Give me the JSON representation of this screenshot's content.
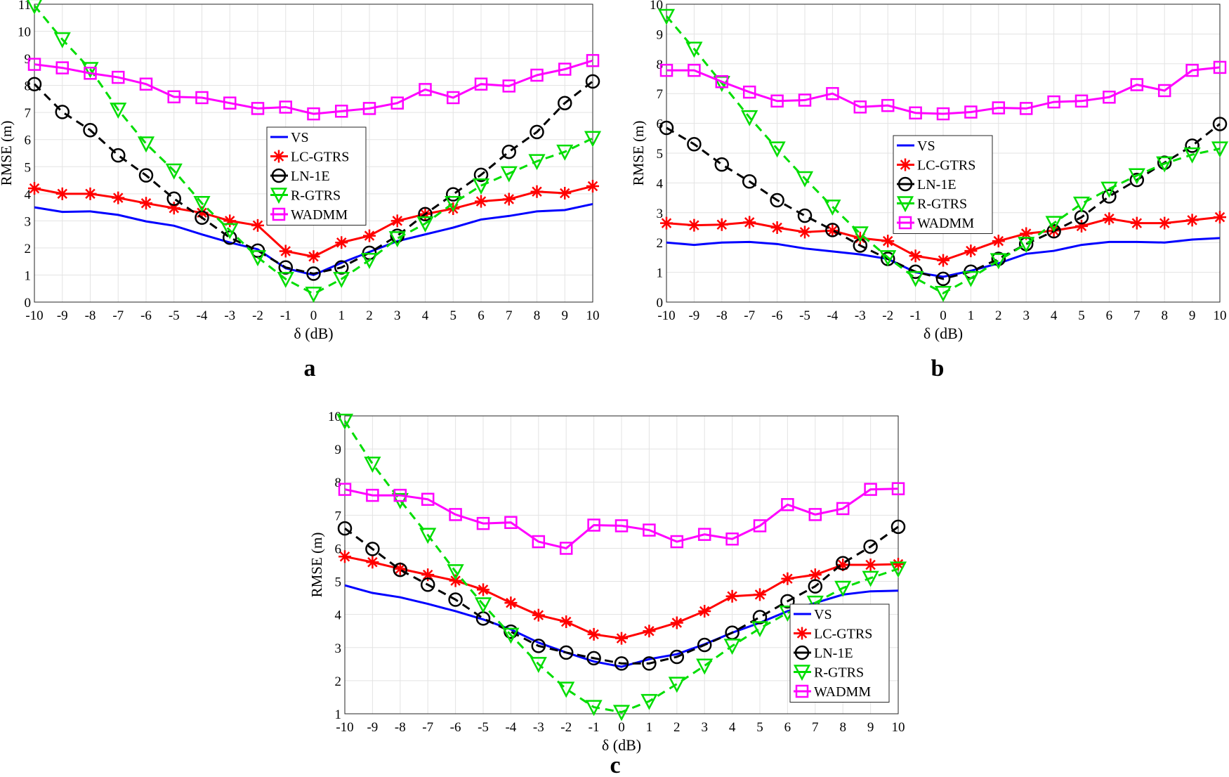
{
  "colors": {
    "VS": "#0000ff",
    "LC-GTRS": "#ff0000",
    "LN-1E": "#000000",
    "R-GTRS": "#00dd00",
    "WADMM": "#ff00ff"
  },
  "chart_data": [
    {
      "type": "line",
      "panel_label": "a",
      "xlabel": "δ (dB)",
      "ylabel": "RMSE (m)",
      "xlim": [
        -10,
        10
      ],
      "ylim": [
        0,
        11
      ],
      "grid": true,
      "legend": "center",
      "x": [
        -10,
        -9,
        -8,
        -7,
        -6,
        -5,
        -4,
        -3,
        -2,
        -1,
        0,
        1,
        2,
        3,
        4,
        5,
        6,
        7,
        8,
        9,
        10
      ],
      "yticks": [
        0,
        1,
        2,
        3,
        4,
        5,
        6,
        7,
        8,
        9,
        10,
        11
      ],
      "series": [
        {
          "name": "VS",
          "marker": "none",
          "values": [
            3.5,
            3.33,
            3.35,
            3.22,
            2.98,
            2.82,
            2.5,
            2.2,
            1.95,
            1.25,
            1.0,
            1.45,
            1.85,
            2.25,
            2.5,
            2.75,
            3.05,
            3.18,
            3.35,
            3.4,
            3.62
          ]
        },
        {
          "name": "LC-GTRS",
          "marker": "star",
          "values": [
            4.2,
            4.0,
            4.0,
            3.85,
            3.65,
            3.47,
            3.3,
            3.0,
            2.83,
            1.88,
            1.68,
            2.2,
            2.45,
            3.0,
            3.25,
            3.45,
            3.72,
            3.8,
            4.08,
            4.02,
            4.28
          ]
        },
        {
          "name": "LN-1E",
          "marker": "circle",
          "values": [
            8.05,
            7.02,
            6.35,
            5.42,
            4.68,
            3.82,
            3.12,
            2.38,
            1.9,
            1.28,
            1.05,
            1.28,
            1.82,
            2.45,
            3.25,
            3.98,
            4.7,
            5.55,
            6.28,
            7.35,
            8.15
          ]
        },
        {
          "name": "R-GTRS",
          "marker": "triangle-down",
          "values": [
            10.95,
            9.7,
            8.6,
            7.1,
            5.85,
            4.85,
            3.65,
            2.65,
            1.65,
            0.85,
            0.3,
            0.85,
            1.55,
            2.35,
            2.9,
            3.65,
            4.3,
            4.75,
            5.2,
            5.55,
            6.05
          ]
        },
        {
          "name": "WADMM",
          "marker": "square",
          "values": [
            8.78,
            8.65,
            8.45,
            8.3,
            8.05,
            7.58,
            7.55,
            7.35,
            7.15,
            7.2,
            6.95,
            7.05,
            7.15,
            7.35,
            7.85,
            7.55,
            8.05,
            7.98,
            8.38,
            8.6,
            8.92
          ]
        }
      ]
    },
    {
      "type": "line",
      "panel_label": "b",
      "xlabel": "δ (dB)",
      "ylabel": "RMSE (m)",
      "xlim": [
        -10,
        10
      ],
      "ylim": [
        0,
        10
      ],
      "grid": true,
      "legend": "center-right",
      "x": [
        -10,
        -9,
        -8,
        -7,
        -6,
        -5,
        -4,
        -3,
        -2,
        -1,
        0,
        1,
        2,
        3,
        4,
        5,
        6,
        7,
        8,
        9,
        10
      ],
      "yticks": [
        0,
        1,
        2,
        3,
        4,
        5,
        6,
        7,
        8,
        9,
        10
      ],
      "series": [
        {
          "name": "VS",
          "marker": "none",
          "values": [
            2.0,
            1.92,
            2.0,
            2.02,
            1.95,
            1.8,
            1.7,
            1.6,
            1.45,
            1.0,
            0.85,
            1.05,
            1.3,
            1.62,
            1.72,
            1.92,
            2.02,
            2.02,
            2.0,
            2.1,
            2.15
          ]
        },
        {
          "name": "LC-GTRS",
          "marker": "star",
          "values": [
            2.65,
            2.58,
            2.6,
            2.68,
            2.5,
            2.35,
            2.4,
            2.15,
            2.05,
            1.55,
            1.4,
            1.72,
            2.05,
            2.3,
            2.4,
            2.55,
            2.8,
            2.65,
            2.65,
            2.75,
            2.85
          ]
        },
        {
          "name": "LN-1E",
          "marker": "circle",
          "values": [
            5.85,
            5.3,
            4.62,
            4.05,
            3.42,
            2.9,
            2.42,
            1.9,
            1.45,
            1.02,
            0.78,
            1.02,
            1.45,
            1.95,
            2.38,
            2.85,
            3.55,
            4.1,
            4.68,
            5.25,
            5.98
          ]
        },
        {
          "name": "R-GTRS",
          "marker": "triangle-down",
          "values": [
            9.6,
            8.5,
            7.35,
            6.2,
            5.15,
            4.15,
            3.2,
            2.3,
            1.5,
            0.8,
            0.3,
            0.8,
            1.4,
            1.95,
            2.65,
            3.3,
            3.8,
            4.25,
            4.65,
            4.95,
            5.15
          ]
        },
        {
          "name": "WADMM",
          "marker": "square",
          "values": [
            7.78,
            7.78,
            7.4,
            7.05,
            6.75,
            6.78,
            7.0,
            6.55,
            6.6,
            6.35,
            6.32,
            6.38,
            6.52,
            6.5,
            6.72,
            6.75,
            6.88,
            7.3,
            7.1,
            7.78,
            7.88
          ]
        }
      ]
    },
    {
      "type": "line",
      "panel_label": "c",
      "xlabel": "δ (dB)",
      "ylabel": "RMSE (m)",
      "xlim": [
        -10,
        10
      ],
      "ylim": [
        1,
        10
      ],
      "grid": true,
      "legend": "bottom-right",
      "x": [
        -10,
        -9,
        -8,
        -7,
        -6,
        -5,
        -4,
        -3,
        -2,
        -1,
        0,
        1,
        2,
        3,
        4,
        5,
        6,
        7,
        8,
        9,
        10
      ],
      "yticks": [
        1,
        2,
        3,
        4,
        5,
        6,
        7,
        8,
        9,
        10
      ],
      "series": [
        {
          "name": "VS",
          "marker": "none",
          "values": [
            4.88,
            4.65,
            4.52,
            4.32,
            4.1,
            3.85,
            3.55,
            3.15,
            2.85,
            2.58,
            2.42,
            2.65,
            2.8,
            3.1,
            3.45,
            3.75,
            4.1,
            4.35,
            4.6,
            4.7,
            4.72
          ]
        },
        {
          "name": "LC-GTRS",
          "marker": "star",
          "values": [
            5.75,
            5.58,
            5.38,
            5.2,
            5.02,
            4.75,
            4.35,
            3.98,
            3.78,
            3.4,
            3.28,
            3.5,
            3.75,
            4.1,
            4.55,
            4.6,
            5.08,
            5.2,
            5.5,
            5.5,
            5.52
          ]
        },
        {
          "name": "LN-1E",
          "marker": "circle",
          "values": [
            6.6,
            5.98,
            5.35,
            4.9,
            4.45,
            3.88,
            3.48,
            3.05,
            2.85,
            2.68,
            2.52,
            2.52,
            2.72,
            3.08,
            3.45,
            3.92,
            4.4,
            4.85,
            5.55,
            6.05,
            6.65
          ]
        },
        {
          "name": "R-GTRS",
          "marker": "triangle-down",
          "values": [
            9.85,
            8.55,
            7.45,
            6.4,
            5.3,
            4.3,
            3.38,
            2.5,
            1.75,
            1.2,
            1.05,
            1.38,
            1.9,
            2.45,
            3.05,
            3.58,
            4.05,
            4.35,
            4.8,
            5.1,
            5.38
          ]
        },
        {
          "name": "WADMM",
          "marker": "square",
          "values": [
            7.78,
            7.6,
            7.6,
            7.48,
            7.02,
            6.75,
            6.78,
            6.2,
            6.0,
            6.7,
            6.68,
            6.55,
            6.2,
            6.42,
            6.28,
            6.68,
            7.32,
            7.02,
            7.2,
            7.78,
            7.8
          ]
        }
      ]
    }
  ]
}
